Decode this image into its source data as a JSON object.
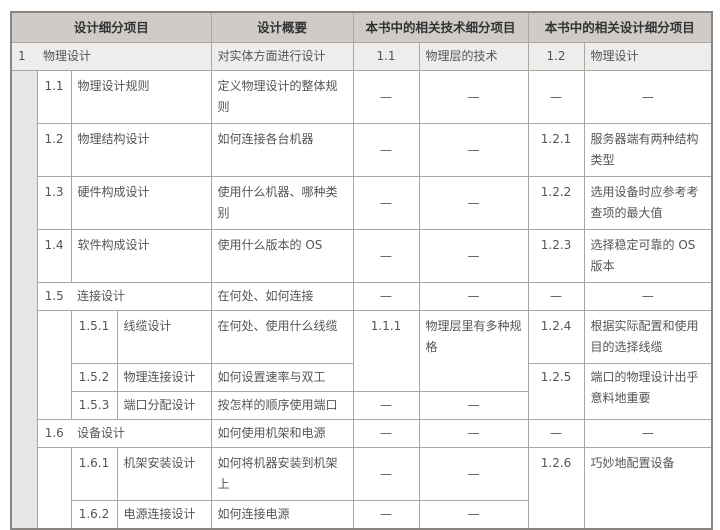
{
  "header": {
    "items": "设计细分项目",
    "overview": "设计概要",
    "tech": "本书中的相关技术细分项目",
    "design": "本书中的相关设计细分项目"
  },
  "dash": "—",
  "row1": {
    "num": "1",
    "name": "物理设计",
    "overview": "对实体方面进行设计",
    "tech_num": "1.1",
    "tech": "物理层的技术",
    "design_num": "1.2",
    "design": "物理设计"
  },
  "rows": {
    "r11": {
      "num": "1.1",
      "name": "物理设计规则",
      "overview": "定义物理设计的整体规则"
    },
    "r12": {
      "num": "1.2",
      "name": "物理结构设计",
      "overview": "如何连接各台机器",
      "design_num": "1.2.1",
      "design": "服务器端有两种结构类型"
    },
    "r13": {
      "num": "1.3",
      "name": "硬件构成设计",
      "overview": "使用什么机器、哪种类别",
      "design_num": "1.2.2",
      "design": "选用设备时应参考考查项的最大值"
    },
    "r14": {
      "num": "1.4",
      "name": "软件构成设计",
      "overview": "使用什么版本的 OS",
      "design_num": "1.2.3",
      "design": "选择稳定可靠的 OS 版本"
    },
    "r15": {
      "num": "1.5",
      "name": "连接设计",
      "overview": "在何处、如何连接"
    },
    "r151": {
      "num": "1.5.1",
      "name": "线缆设计",
      "overview": "在何处、使用什么线缆",
      "tech_num": "1.1.1",
      "tech": "物理层里有多种规格",
      "design_num": "1.2.4",
      "design": "根据实际配置和使用目的选择线缆"
    },
    "r152": {
      "num": "1.5.2",
      "name": "物理连接设计",
      "overview": "如何设置速率与双工",
      "design_num": "1.2.5",
      "design": "端口的物理设计出乎意料地重要"
    },
    "r153": {
      "num": "1.5.3",
      "name": "端口分配设计",
      "overview": "按怎样的顺序使用端口"
    },
    "r16": {
      "num": "1.6",
      "name": "设备设计",
      "overview": "如何使用机架和电源"
    },
    "r161": {
      "num": "1.6.1",
      "name": "机架安装设计",
      "overview": "如何将机器安装到机架上",
      "design_num": "1.2.6",
      "design": "巧妙地配置设备"
    },
    "r162": {
      "num": "1.6.2",
      "name": "电源连接设计",
      "overview": "如何连接电源"
    }
  }
}
